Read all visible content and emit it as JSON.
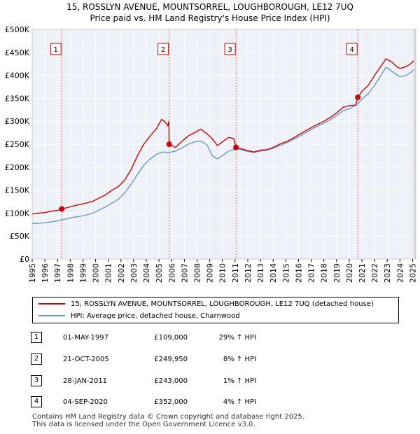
{
  "title_line1": "15, ROSSLYN AVENUE, MOUNTSORREL, LOUGHBOROUGH, LE12 7UQ",
  "title_line2": "Price paid vs. HM Land Registry's House Price Index (HPI)",
  "chart_data": {
    "type": "line",
    "x_range": [
      1995,
      2025.25
    ],
    "ylim": [
      0,
      500000
    ],
    "y_ticks": [
      {
        "value": 0,
        "label": "£0"
      },
      {
        "value": 50000,
        "label": "£50K"
      },
      {
        "value": 100000,
        "label": "£100K"
      },
      {
        "value": 150000,
        "label": "£150K"
      },
      {
        "value": 200000,
        "label": "£200K"
      },
      {
        "value": 250000,
        "label": "£250K"
      },
      {
        "value": 300000,
        "label": "£300K"
      },
      {
        "value": 350000,
        "label": "£350K"
      },
      {
        "value": 400000,
        "label": "£400K"
      },
      {
        "value": 450000,
        "label": "£450K"
      },
      {
        "value": 500000,
        "label": "£500K"
      }
    ],
    "x_ticks": [
      "1995",
      "1996",
      "1997",
      "1998",
      "1999",
      "2000",
      "2001",
      "2002",
      "2003",
      "2004",
      "2005",
      "2006",
      "2007",
      "2008",
      "2009",
      "2010",
      "2011",
      "2012",
      "2013",
      "2014",
      "2015",
      "2016",
      "2017",
      "2018",
      "2019",
      "2020",
      "2021",
      "2022",
      "2023",
      "2024",
      "2025"
    ],
    "series": [
      {
        "name": "15, ROSSLYN AVENUE, MOUNTSORREL, LOUGHBOROUGH, LE12 7UQ (detached house)",
        "color": "#cc0000",
        "points": [
          [
            1995.0,
            98000
          ],
          [
            1995.5,
            100000
          ],
          [
            1996.0,
            101000
          ],
          [
            1996.5,
            104000
          ],
          [
            1997.0,
            106000
          ],
          [
            1997.33,
            109000
          ],
          [
            1997.8,
            112000
          ],
          [
            1998.3,
            116000
          ],
          [
            1998.8,
            119000
          ],
          [
            1999.3,
            122000
          ],
          [
            1999.8,
            126000
          ],
          [
            2000.3,
            133000
          ],
          [
            2000.8,
            140000
          ],
          [
            2001.3,
            150000
          ],
          [
            2001.8,
            158000
          ],
          [
            2002.3,
            172000
          ],
          [
            2002.8,
            195000
          ],
          [
            2003.3,
            225000
          ],
          [
            2003.8,
            250000
          ],
          [
            2004.3,
            268000
          ],
          [
            2004.8,
            284000
          ],
          [
            2005.2,
            304000
          ],
          [
            2005.5,
            298000
          ],
          [
            2005.7,
            290000
          ],
          [
            2005.78,
            300000
          ],
          [
            2005.8,
            249950
          ],
          [
            2006.3,
            243000
          ],
          [
            2006.8,
            256000
          ],
          [
            2007.3,
            268000
          ],
          [
            2007.8,
            275000
          ],
          [
            2008.3,
            283000
          ],
          [
            2008.8,
            272000
          ],
          [
            2009.2,
            262000
          ],
          [
            2009.6,
            247000
          ],
          [
            2010.0,
            255000
          ],
          [
            2010.5,
            265000
          ],
          [
            2010.9,
            262000
          ],
          [
            2011.07,
            243000
          ],
          [
            2011.5,
            240000
          ],
          [
            2012.0,
            236000
          ],
          [
            2012.5,
            233000
          ],
          [
            2013.0,
            237000
          ],
          [
            2013.5,
            238000
          ],
          [
            2014.0,
            243000
          ],
          [
            2014.5,
            250000
          ],
          [
            2015.0,
            255000
          ],
          [
            2015.5,
            262000
          ],
          [
            2016.0,
            270000
          ],
          [
            2016.5,
            278000
          ],
          [
            2017.0,
            286000
          ],
          [
            2017.5,
            293000
          ],
          [
            2018.0,
            300000
          ],
          [
            2018.5,
            308000
          ],
          [
            2019.0,
            318000
          ],
          [
            2019.5,
            330000
          ],
          [
            2020.0,
            334000
          ],
          [
            2020.5,
            335000
          ],
          [
            2020.68,
            352000
          ],
          [
            2021.0,
            365000
          ],
          [
            2021.5,
            378000
          ],
          [
            2022.0,
            400000
          ],
          [
            2022.5,
            420000
          ],
          [
            2022.9,
            436000
          ],
          [
            2023.3,
            430000
          ],
          [
            2023.7,
            420000
          ],
          [
            2024.0,
            415000
          ],
          [
            2024.4,
            418000
          ],
          [
            2024.8,
            424000
          ],
          [
            2025.1,
            432000
          ]
        ]
      },
      {
        "name": "HPI: Average price, detached house, Charnwood",
        "color": "#6699cc",
        "points": [
          [
            1995.0,
            77000
          ],
          [
            1995.5,
            78000
          ],
          [
            1996.0,
            79000
          ],
          [
            1996.5,
            81000
          ],
          [
            1997.0,
            83000
          ],
          [
            1997.33,
            85000
          ],
          [
            1997.8,
            88000
          ],
          [
            1998.3,
            91000
          ],
          [
            1998.8,
            93000
          ],
          [
            1999.3,
            96000
          ],
          [
            1999.8,
            100000
          ],
          [
            2000.3,
            107000
          ],
          [
            2000.8,
            114000
          ],
          [
            2001.3,
            122000
          ],
          [
            2001.8,
            130000
          ],
          [
            2002.3,
            144000
          ],
          [
            2002.8,
            163000
          ],
          [
            2003.3,
            184000
          ],
          [
            2003.8,
            204000
          ],
          [
            2004.3,
            218000
          ],
          [
            2004.8,
            228000
          ],
          [
            2005.3,
            233000
          ],
          [
            2005.8,
            232000
          ],
          [
            2006.3,
            235000
          ],
          [
            2006.8,
            242000
          ],
          [
            2007.3,
            250000
          ],
          [
            2007.8,
            255000
          ],
          [
            2008.3,
            257000
          ],
          [
            2008.8,
            248000
          ],
          [
            2009.2,
            225000
          ],
          [
            2009.6,
            218000
          ],
          [
            2010.0,
            225000
          ],
          [
            2010.5,
            235000
          ],
          [
            2011.07,
            240000
          ],
          [
            2011.5,
            238000
          ],
          [
            2012.0,
            234000
          ],
          [
            2012.5,
            232000
          ],
          [
            2013.0,
            235000
          ],
          [
            2013.5,
            237000
          ],
          [
            2014.0,
            241000
          ],
          [
            2014.5,
            247000
          ],
          [
            2015.0,
            252000
          ],
          [
            2015.5,
            259000
          ],
          [
            2016.0,
            266000
          ],
          [
            2016.5,
            274000
          ],
          [
            2017.0,
            282000
          ],
          [
            2017.5,
            289000
          ],
          [
            2018.0,
            296000
          ],
          [
            2018.5,
            303000
          ],
          [
            2019.0,
            312000
          ],
          [
            2019.5,
            323000
          ],
          [
            2020.0,
            327000
          ],
          [
            2020.68,
            338000
          ],
          [
            2021.0,
            348000
          ],
          [
            2021.5,
            360000
          ],
          [
            2022.0,
            378000
          ],
          [
            2022.5,
            400000
          ],
          [
            2022.9,
            418000
          ],
          [
            2023.3,
            410000
          ],
          [
            2023.7,
            402000
          ],
          [
            2024.0,
            397000
          ],
          [
            2024.4,
            399000
          ],
          [
            2024.8,
            405000
          ],
          [
            2025.1,
            412000
          ]
        ]
      }
    ],
    "markers": [
      {
        "label": "1",
        "x": 1997.33,
        "y": 109000
      },
      {
        "label": "2",
        "x": 2005.8,
        "y": 249950
      },
      {
        "label": "3",
        "x": 2011.07,
        "y": 243000
      },
      {
        "label": "4",
        "x": 2020.68,
        "y": 352000
      }
    ],
    "grid": true
  },
  "legend": {
    "property_label": "15, ROSSLYN AVENUE, MOUNTSORREL, LOUGHBOROUGH, LE12 7UQ (detached house)",
    "hpi_label": "HPI: Average price, detached house, Charnwood",
    "property_color": "#cc0000",
    "hpi_color": "#6699cc"
  },
  "transactions": [
    {
      "num": "1",
      "date": "01-MAY-1997",
      "price": "£109,000",
      "hpi": "29% ↑ HPI"
    },
    {
      "num": "2",
      "date": "21-OCT-2005",
      "price": "£249,950",
      "hpi": "8% ↑ HPI"
    },
    {
      "num": "3",
      "date": "28-JAN-2011",
      "price": "£243,000",
      "hpi": "1% ↑ HPI"
    },
    {
      "num": "4",
      "date": "04-SEP-2020",
      "price": "£352,000",
      "hpi": "4% ↑ HPI"
    }
  ],
  "footer": {
    "line1": "Contains HM Land Registry data © Crown copyright and database right 2025.",
    "line2": "This data is licensed under the Open Government Licence v3.0."
  }
}
